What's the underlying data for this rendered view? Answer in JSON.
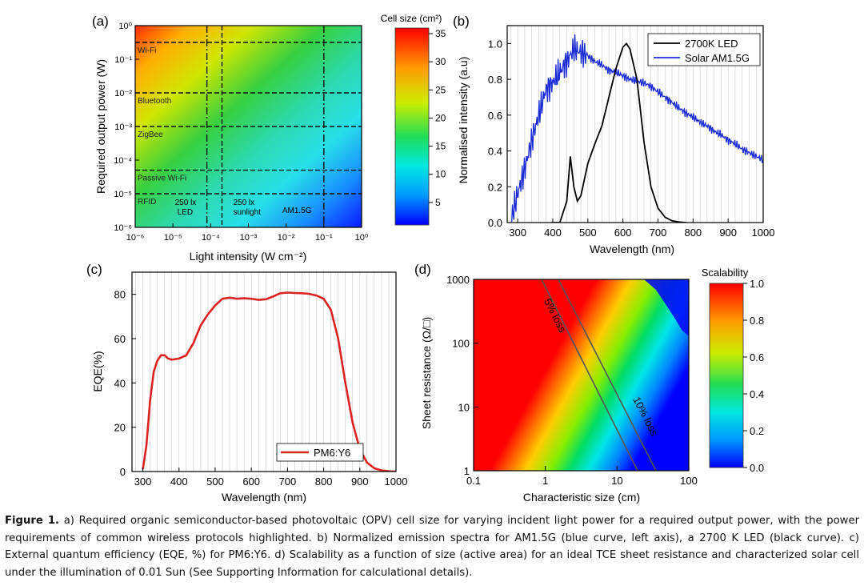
{
  "panels": {
    "a": {
      "label": "(a)"
    },
    "b": {
      "label": "(b)"
    },
    "c": {
      "label": "(c)"
    },
    "d": {
      "label": "(d)"
    }
  },
  "colors": {
    "red": "#ff0000",
    "blue": "#0000ff",
    "darkred": "#dd2222",
    "spec_blue": "#1a2bd6"
  },
  "chart_data": [
    {
      "id": "a",
      "type": "heatmap",
      "xlabel": "Light intensity (W cm⁻²)",
      "ylabel": "Required output power (W)",
      "xticks": [
        "10⁻⁶",
        "10⁻⁵",
        "10⁻⁴",
        "10⁻³",
        "10⁻²",
        "10⁻¹",
        "10⁰"
      ],
      "yticks": [
        "10⁰",
        "10⁻¹",
        "10⁻²",
        "10⁻³",
        "10⁻⁴",
        "10⁻⁵",
        "10⁻⁶"
      ],
      "xlim_log10": [
        -6,
        0
      ],
      "ylim_log10": [
        -6,
        0
      ],
      "colorbar": {
        "title": "Cell size (cm²)",
        "ticks": [
          "35",
          "30",
          "25",
          "20",
          "15",
          "10",
          "5"
        ],
        "range": [
          1,
          36
        ]
      },
      "hlines": [
        {
          "label": "Wi-Fi",
          "y_log10": -0.5
        },
        {
          "label": "Bluetooth",
          "y_log10": -2
        },
        {
          "label": "ZigBee",
          "y_log10": -3
        },
        {
          "label": "Passive Wi-Fi",
          "y_log10": -4.3
        },
        {
          "label": "RFID",
          "y_log10": -5
        }
      ],
      "vlines": [
        {
          "label": "250 lx\nLED",
          "line1": "250 lx",
          "line2": "LED",
          "x_log10": -4.1
        },
        {
          "label": "250 lx\nsunlight",
          "line1": "250 lx",
          "line2": "sunlight",
          "x_log10": -3.7
        },
        {
          "label": "AM1.5G",
          "x_log10": -1
        }
      ]
    },
    {
      "id": "b",
      "type": "line",
      "xlabel": "Wavelength (nm)",
      "ylabel": "Normalised intensity (a.u)",
      "xlim": [
        270,
        1000
      ],
      "ylim": [
        0,
        1.1
      ],
      "xticks": [
        300,
        400,
        500,
        600,
        700,
        800,
        900,
        1000
      ],
      "yticks": [
        "0.0",
        "0.2",
        "0.4",
        "0.6",
        "0.8",
        "1.0"
      ],
      "series": [
        {
          "name": "2700K LED",
          "color": "#000000",
          "x": [
            395,
            420,
            440,
            450,
            460,
            470,
            480,
            500,
            520,
            540,
            560,
            580,
            600,
            610,
            620,
            640,
            660,
            680,
            700,
            720,
            740,
            760,
            780
          ],
          "y": [
            0,
            0,
            0.12,
            0.37,
            0.2,
            0.12,
            0.15,
            0.33,
            0.44,
            0.54,
            0.7,
            0.86,
            0.98,
            1.0,
            0.97,
            0.8,
            0.45,
            0.2,
            0.08,
            0.03,
            0.01,
            0.003,
            0
          ]
        },
        {
          "name": "Solar AM1.5G",
          "color": "#1a2bd6",
          "x": [
            283,
            300,
            320,
            340,
            360,
            380,
            400,
            420,
            440,
            460,
            480,
            500,
            520,
            540,
            560,
            580,
            600,
            620,
            640,
            660,
            680,
            700,
            720,
            740,
            760,
            780,
            800,
            820,
            840,
            860,
            880,
            900,
            920,
            940,
            960,
            980,
            1000
          ],
          "y": [
            0.03,
            0.16,
            0.3,
            0.46,
            0.6,
            0.74,
            0.78,
            0.84,
            0.9,
            0.97,
            0.95,
            0.93,
            0.9,
            0.88,
            0.85,
            0.84,
            0.82,
            0.8,
            0.79,
            0.78,
            0.76,
            0.73,
            0.7,
            0.67,
            0.64,
            0.61,
            0.59,
            0.56,
            0.54,
            0.51,
            0.49,
            0.46,
            0.44,
            0.41,
            0.39,
            0.37,
            0.35
          ]
        }
      ]
    },
    {
      "id": "c",
      "type": "line",
      "xlabel": "Wavelength (nm)",
      "ylabel": "EQE(%)",
      "xlim": [
        270,
        1000
      ],
      "ylim": [
        0,
        90
      ],
      "xticks": [
        300,
        400,
        500,
        600,
        700,
        800,
        900,
        1000
      ],
      "yticks": [
        "0",
        "20",
        "40",
        "60",
        "80"
      ],
      "series": [
        {
          "name": "PM6:Y6",
          "color": "#dd2222",
          "x": [
            300,
            310,
            320,
            330,
            340,
            350,
            360,
            370,
            380,
            400,
            420,
            440,
            460,
            480,
            500,
            520,
            540,
            560,
            580,
            600,
            620,
            640,
            660,
            680,
            700,
            720,
            740,
            760,
            780,
            800,
            820,
            840,
            860,
            880,
            900,
            920,
            940,
            960,
            980,
            1000
          ],
          "y": [
            1,
            12,
            32,
            45,
            50,
            52.5,
            52.5,
            51,
            50.5,
            51,
            52.5,
            58,
            66,
            71,
            75,
            78,
            78.5,
            78,
            78.2,
            78,
            77.5,
            77.8,
            79,
            80.5,
            80.8,
            80.6,
            80.5,
            80.2,
            79.5,
            78,
            73,
            60,
            40,
            22,
            10,
            4,
            1.5,
            0.5,
            0.1,
            0
          ]
        }
      ]
    },
    {
      "id": "d",
      "type": "heatmap",
      "xlabel": "Characteristic size (cm)",
      "ylabel": "Sheet resistance (Ω/□)",
      "xticks": [
        "0.1",
        "1",
        "10",
        "100"
      ],
      "yticks": [
        "1000",
        "100",
        "10",
        "1"
      ],
      "xlim_log10": [
        -1,
        2
      ],
      "ylim_log10": [
        0,
        3
      ],
      "colorbar": {
        "title": "Scalability",
        "ticks": [
          "1.0",
          "0.8",
          "0.6",
          "0.4",
          "0.2",
          "0.0"
        ],
        "range": [
          0,
          1
        ]
      },
      "contours": [
        {
          "label": "5% loss"
        },
        {
          "label": "10% loss"
        }
      ]
    }
  ],
  "legend_c": "PM6:Y6",
  "caption": {
    "head": "Figure 1.",
    "body": " a) Required organic semiconductor-based photovoltaic (OPV) cell size for varying incident light power for a required output power, with the power requirements of common wireless protocols highlighted. b) Normalized emission spectra for AM1.5G (blue curve, left axis), a 2700 K LED (black curve). c) External quantum efficiency (EQE, %) for PM6:Y6. d) Scalability as a function of size (active area) for an ideal TCE sheet resistance and characterized solar cell under the illumination of 0.01 Sun (See Supporting Information for calculational details)."
  }
}
